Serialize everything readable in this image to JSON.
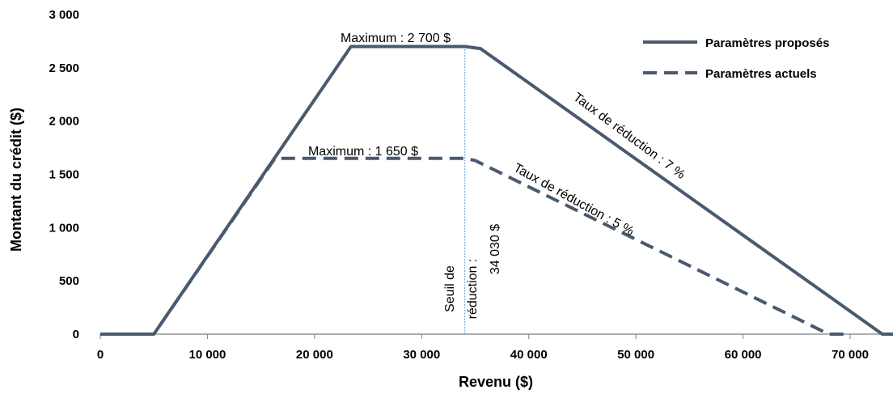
{
  "chart_data": {
    "type": "line",
    "title": "",
    "xlabel": "Revenu ($)",
    "ylabel": "Montant du crédit ($)",
    "xlim": [
      0,
      74000
    ],
    "ylim": [
      0,
      3000
    ],
    "x_ticks": [
      0,
      10000,
      20000,
      30000,
      40000,
      50000,
      60000,
      70000
    ],
    "x_tick_labels": [
      "0",
      "10 000",
      "20 000",
      "30 000",
      "40 000",
      "50 000",
      "60 000",
      "70 000"
    ],
    "y_ticks": [
      0,
      500,
      1000,
      1500,
      2000,
      2500,
      3000
    ],
    "y_tick_labels": [
      "0",
      "500",
      "1 000",
      "1 500",
      "2 000",
      "2 500",
      "3 000"
    ],
    "grid": false,
    "legend_position": "top-right",
    "series": [
      {
        "name": "Paramètres proposés",
        "style": "solid",
        "color": "#4a5a6e",
        "points": [
          [
            0,
            0
          ],
          [
            5000,
            0
          ],
          [
            23400,
            2700
          ],
          [
            34030,
            2700
          ],
          [
            35500,
            2680
          ],
          [
            73000,
            0
          ],
          [
            74000,
            0
          ]
        ]
      },
      {
        "name": "Paramètres actuels",
        "style": "dashed",
        "color": "#4a5a6e",
        "points": [
          [
            0,
            0
          ],
          [
            5000,
            0
          ],
          [
            16300,
            1650
          ],
          [
            34030,
            1650
          ],
          [
            35000,
            1630
          ],
          [
            68000,
            0
          ],
          [
            70000,
            0
          ]
        ]
      }
    ],
    "vline": {
      "x": 34030,
      "color": "#5b9bd5"
    },
    "annotations": {
      "max_proposed": "Maximum : 2 700 $",
      "max_current": "Maximum : 1 650 $",
      "rate_proposed": "Taux de réduction : 7 %",
      "rate_current": "Taux de réduction : 5 %",
      "threshold_line1": "Seuil de",
      "threshold_line2": "réduction :",
      "threshold_line3": "34 030 $"
    }
  }
}
